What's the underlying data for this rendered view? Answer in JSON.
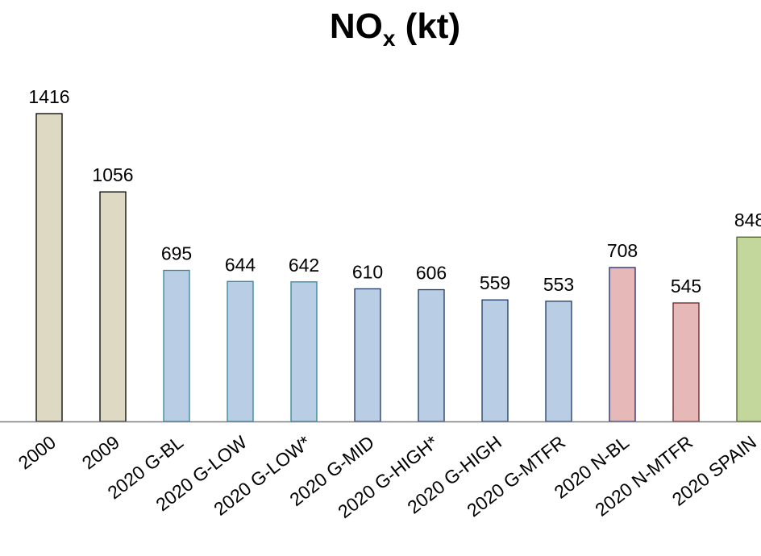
{
  "chart_data": {
    "type": "bar",
    "title_main": "NO",
    "title_sub": "x",
    "title_suffix": " (kt)",
    "categories": [
      "2000",
      "2009",
      "2020 G-BL",
      "2020 G-LOW",
      "2020 G-LOW*",
      "2020 G-MID",
      "2020 G-HIGH*",
      "2020 G-HIGH",
      "2020 G-MTFR",
      "2020 N-BL",
      "2020 N-MTFR",
      "2020 SPAIN"
    ],
    "values": [
      1416,
      1056,
      695,
      644,
      642,
      610,
      606,
      559,
      553,
      708,
      545,
      848
    ],
    "value_labels": [
      "1416",
      "1056",
      "695",
      "644",
      "642",
      "610",
      "606",
      "559",
      "553",
      "708",
      "545",
      "848"
    ],
    "ylim": [
      0,
      1416
    ],
    "grid": false,
    "colors": {
      "fill": [
        "#ddd9c3",
        "#ddd9c3",
        "#b9cde5",
        "#b9cde5",
        "#b9cde5",
        "#b9cde5",
        "#b9cde5",
        "#b9cde5",
        "#b9cde5",
        "#e6b9b8",
        "#e6b9b8",
        "#c3d69b"
      ],
      "stroke": [
        "#000000",
        "#000000",
        "#31859c",
        "#31859c",
        "#31859c",
        "#1f3864",
        "#1f3864",
        "#1f3864",
        "#1f3864",
        "#1f2a6b",
        "#632523",
        "#4f6228"
      ],
      "axis": "#7f7f7f"
    }
  }
}
